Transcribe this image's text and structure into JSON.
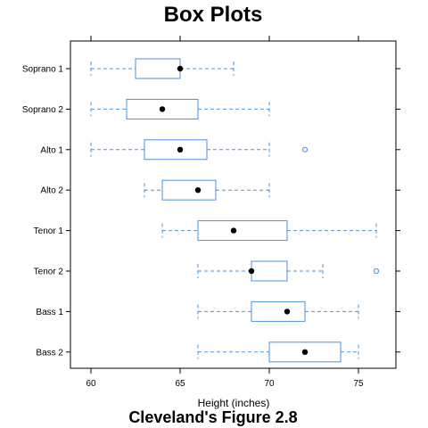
{
  "chart_data": {
    "type": "boxplot",
    "title": "Box Plots",
    "subtitle": "Cleveland's Figure 2.8",
    "xlabel": "Height (inches)",
    "ylabel": "",
    "xlim": [
      59,
      77
    ],
    "xticks": [
      60,
      65,
      70,
      75
    ],
    "categories": [
      "Soprano 1",
      "Soprano 2",
      "Alto 1",
      "Alto 2",
      "Tenor 1",
      "Tenor 2",
      "Bass 1",
      "Bass 2"
    ],
    "boxes": [
      {
        "name": "Soprano 1",
        "whisker_low": 60,
        "q1": 62.5,
        "median": 65,
        "q3": 65,
        "whisker_high": 68,
        "outliers": []
      },
      {
        "name": "Soprano 2",
        "whisker_low": 60,
        "q1": 62,
        "median": 64,
        "q3": 66,
        "whisker_high": 70,
        "outliers": []
      },
      {
        "name": "Alto 1",
        "whisker_low": 60,
        "q1": 63,
        "median": 65,
        "q3": 66.5,
        "whisker_high": 70,
        "outliers": [
          72
        ]
      },
      {
        "name": "Alto 2",
        "whisker_low": 63,
        "q1": 64,
        "median": 66,
        "q3": 67,
        "whisker_high": 70,
        "outliers": []
      },
      {
        "name": "Tenor 1",
        "whisker_low": 64,
        "q1": 66,
        "median": 68,
        "q3": 71,
        "whisker_high": 76,
        "outliers": []
      },
      {
        "name": "Tenor 2",
        "whisker_low": 66,
        "q1": 69,
        "median": 69,
        "q3": 71,
        "whisker_high": 73,
        "outliers": [
          76
        ]
      },
      {
        "name": "Bass 1",
        "whisker_low": 66,
        "q1": 69,
        "median": 71,
        "q3": 72,
        "whisker_high": 75,
        "outliers": []
      },
      {
        "name": "Bass 2",
        "whisker_low": 66,
        "q1": 70,
        "median": 72,
        "q3": 74,
        "whisker_high": 75,
        "outliers": []
      }
    ],
    "colors": {
      "box": "#4a90e2",
      "median": "#000000",
      "frame": "#000000"
    },
    "grid": false,
    "legend": "none"
  }
}
